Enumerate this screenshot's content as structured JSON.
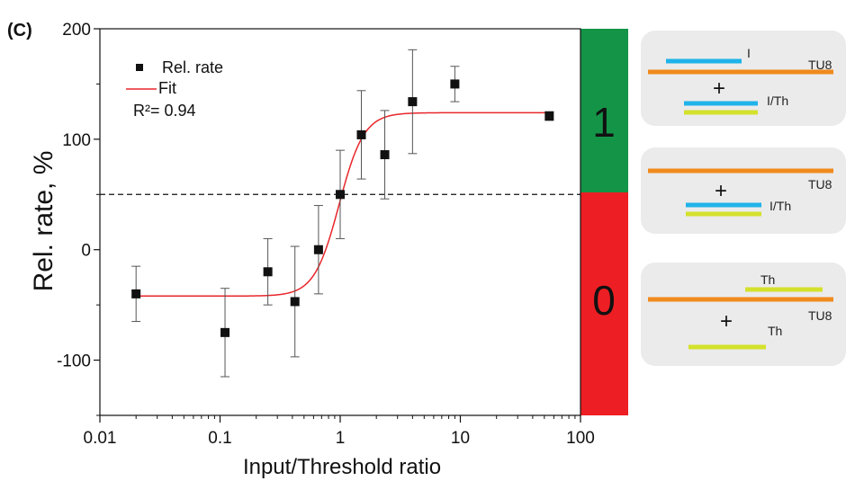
{
  "panel_label": "(C)",
  "colors": {
    "marker": "#111111",
    "fit": "#e8262b",
    "state_high": "#149447",
    "state_low": "#ed1f24",
    "strand_orange": "#f08a1d",
    "strand_blue": "#1fb3ea",
    "strand_yellow": "#d4e12c",
    "panel_bg": "#ebebeb"
  },
  "chart_data": {
    "type": "scatter",
    "xlabel": "Input/Threshold ratio",
    "ylabel": "Rel. rate, %",
    "xscale": "log",
    "xlim": [
      0.01,
      100
    ],
    "ylim": [
      -150,
      200
    ],
    "x_ticks": [
      {
        "value": 0.01,
        "label": "0.01"
      },
      {
        "value": 0.1,
        "label": "0.1"
      },
      {
        "value": 1,
        "label": "1"
      },
      {
        "value": 10,
        "label": "10"
      },
      {
        "value": 100,
        "label": "100"
      }
    ],
    "y_ticks": [
      {
        "value": 200,
        "label": "200"
      },
      {
        "value": 100,
        "label": "100"
      },
      {
        "value": 0,
        "label": "0"
      },
      {
        "value": -100,
        "label": "-100"
      }
    ],
    "series": [
      {
        "name": "Rel. rate",
        "kind": "points_with_error",
        "points": [
          {
            "x": 0.02,
            "y": -40,
            "err": 25
          },
          {
            "x": 0.11,
            "y": -75,
            "err": 40
          },
          {
            "x": 0.25,
            "y": -20,
            "err": 30
          },
          {
            "x": 0.42,
            "y": -47,
            "err": 50
          },
          {
            "x": 0.66,
            "y": 0,
            "err": 40
          },
          {
            "x": 1.0,
            "y": 50,
            "err": 40
          },
          {
            "x": 1.5,
            "y": 104,
            "err": 40
          },
          {
            "x": 2.35,
            "y": 86,
            "err": 40
          },
          {
            "x": 4.0,
            "y": 134,
            "err": 47
          },
          {
            "x": 9.0,
            "y": 150,
            "err": 16
          },
          {
            "x": 55,
            "y": 121,
            "err": 4
          }
        ]
      },
      {
        "name": "Fit",
        "kind": "sigmoid",
        "bottom": -42,
        "top": 124,
        "x50": 0.98,
        "hill": 4.2
      }
    ],
    "threshold_line": 50,
    "annotation": "R²= 0.94",
    "legend_position": "top-left",
    "grid": false,
    "state_bars": [
      {
        "label": "1",
        "from": 50,
        "to": 200
      },
      {
        "label": "0",
        "from": -150,
        "to": 50
      }
    ]
  },
  "schematics": [
    {
      "labels": [
        "I",
        "TU8",
        "I/Th"
      ]
    },
    {
      "labels": [
        "TU8",
        "I/Th"
      ]
    },
    {
      "labels": [
        "Th",
        "TU8",
        "Th"
      ]
    }
  ],
  "plus_sign": "+"
}
